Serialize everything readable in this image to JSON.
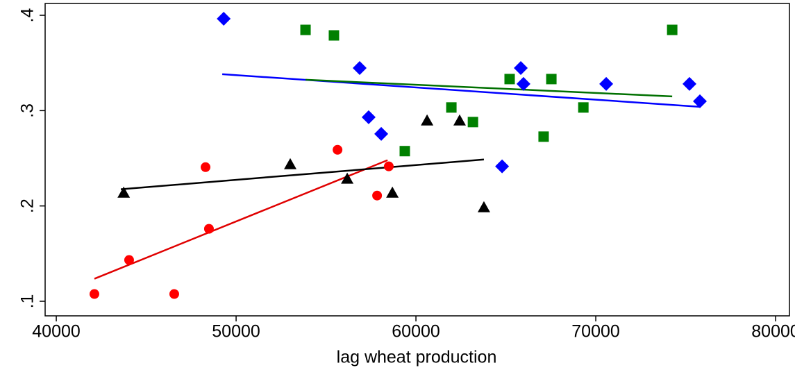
{
  "chart_data": {
    "type": "scatter",
    "x_label": "lag wheat production",
    "xlim": [
      39380,
      80770
    ],
    "xticks": [
      40000,
      50000,
      60000,
      70000,
      80000
    ],
    "ylim": [
      0.0847,
      0.4124
    ],
    "yticks": [
      {
        "value": 0.1,
        "label": ".1"
      },
      {
        "value": 0.2,
        "label": ".2"
      },
      {
        "value": 0.3,
        "label": ".3"
      },
      {
        "value": 0.4,
        "label": ".4"
      }
    ],
    "grid": false,
    "series": [
      {
        "color": "#ff0000",
        "line_color": "#e00000",
        "marker": "circle",
        "x": [
          42120,
          44050,
          46560,
          48300,
          48490,
          55640,
          57840,
          58490
        ],
        "values": [
          0.1076,
          0.1433,
          0.1076,
          0.2407,
          0.176,
          0.2589,
          0.2109,
          0.2415
        ],
        "fit_x": [
          42120,
          58420
        ],
        "fit_values": [
          0.1236,
          0.248
        ]
      },
      {
        "color": "#000000",
        "line_color": "#000000",
        "marker": "triangle",
        "x": [
          43750,
          53010,
          56180,
          58690,
          60620,
          62430,
          63780
        ],
        "values": [
          0.2138,
          0.2436,
          0.2284,
          0.2138,
          0.2895,
          0.2895,
          0.1985
        ],
        "fit_x": [
          43590,
          63780
        ],
        "fit_values": [
          0.2175,
          0.2487
        ]
      },
      {
        "color": "#0000ff",
        "line_color": "#0000ff",
        "marker": "diamond",
        "x": [
          49310,
          56870,
          57370,
          58070,
          64790,
          65830,
          65980,
          70580,
          75210,
          75790
        ],
        "values": [
          0.3964,
          0.3447,
          0.2931,
          0.2756,
          0.2415,
          0.3447,
          0.328,
          0.328,
          0.328,
          0.3098
        ],
        "fit_x": [
          49230,
          75790
        ],
        "fit_values": [
          0.3382,
          0.304
        ]
      },
      {
        "color": "#008000",
        "line_color": "#007000",
        "marker": "square",
        "x": [
          53860,
          55440,
          59380,
          61970,
          63170,
          65210,
          67100,
          67530,
          69310,
          74250
        ],
        "values": [
          0.3847,
          0.3789,
          0.2575,
          0.3033,
          0.288,
          0.3331,
          0.2727,
          0.3331,
          0.3033,
          0.3847
        ],
        "fit_x": [
          53860,
          74250
        ],
        "fit_values": [
          0.3324,
          0.3149
        ]
      }
    ]
  }
}
